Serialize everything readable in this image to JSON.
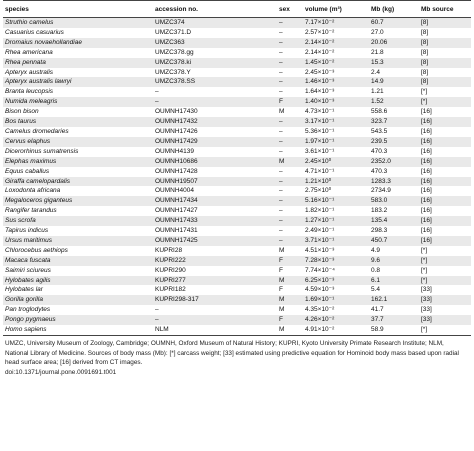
{
  "headers": {
    "species": "species",
    "accession": "accession no.",
    "sex": "sex",
    "volume": "volume (m³)",
    "mb": "Mb (kg)",
    "mb_source": "Mb source"
  },
  "rows": [
    {
      "species": "Struthio camelus",
      "accession": "UMZC374",
      "sex": "–",
      "volume": "7.17×10⁻²",
      "mb": "60.7",
      "source": "[8]"
    },
    {
      "species": "Casuarius casuarius",
      "accession": "UMZC371.D",
      "sex": "–",
      "volume": "2.57×10⁻²",
      "mb": "27.0",
      "source": "[8]"
    },
    {
      "species": "Dromaius novaehollandiae",
      "accession": "UMZC363",
      "sex": "–",
      "volume": "2.14×10⁻²",
      "mb": "20.06",
      "source": "[8]"
    },
    {
      "species": "Rhea americana",
      "accession": "UMZC378.gg",
      "sex": "–",
      "volume": "2.14×10⁻²",
      "mb": "21.8",
      "source": "[8]"
    },
    {
      "species": "Rhea pennata",
      "accession": "UMZC378.ki",
      "sex": "–",
      "volume": "1.45×10⁻²",
      "mb": "15.3",
      "source": "[8]"
    },
    {
      "species": "Apteryx australis",
      "accession": "UMZC378.Y",
      "sex": "–",
      "volume": "2.45×10⁻³",
      "mb": "2.4",
      "source": "[8]"
    },
    {
      "species": "Apteryx australis lawryi",
      "accession": "UMZC378.SS",
      "sex": "–",
      "volume": "1.46×10⁻³",
      "mb": "14.9",
      "source": "[8]"
    },
    {
      "species": "Branta leucopsis",
      "accession": "–",
      "sex": "–",
      "volume": "1.64×10⁻³",
      "mb": "1.21",
      "source": "[*]"
    },
    {
      "species": "Numida meleagris",
      "accession": "–",
      "sex": "F",
      "volume": "1.40×10⁻³",
      "mb": "1.52",
      "source": "[*]"
    },
    {
      "species": "Bison bison",
      "accession": "OUMNH17430",
      "sex": "M",
      "volume": "4.73×10⁻¹",
      "mb": "558.6",
      "source": "[16]"
    },
    {
      "species": "Bos taurus",
      "accession": "OUMNH17432",
      "sex": "–",
      "volume": "3.17×10⁻¹",
      "mb": "323.7",
      "source": "[16]"
    },
    {
      "species": "Camelus dromedaries",
      "accession": "OUMNH17426",
      "sex": "–",
      "volume": "5.36×10⁻¹",
      "mb": "543.5",
      "source": "[16]"
    },
    {
      "species": "Cervus elaphus",
      "accession": "OUMNH17429",
      "sex": "–",
      "volume": "1.97×10⁻¹",
      "mb": "239.5",
      "source": "[16]"
    },
    {
      "species": "Dicerorhinus sumatrensis",
      "accession": "OUMNH4139",
      "sex": "–",
      "volume": "3.61×10⁻¹",
      "mb": "470.3",
      "source": "[16]"
    },
    {
      "species": "Elephas maximus",
      "accession": "OUMNH10686",
      "sex": "M",
      "volume": "2.45×10⁰",
      "mb": "2352.0",
      "source": "[16]"
    },
    {
      "species": "Equus caballus",
      "accession": "OUMNH17428",
      "sex": "–",
      "volume": "4.71×10⁻¹",
      "mb": "470.3",
      "source": "[16]"
    },
    {
      "species": "Giraffa camelopardalis",
      "accession": "OUMNH19507",
      "sex": "–",
      "volume": "1.21×10⁰",
      "mb": "1283.3",
      "source": "[16]"
    },
    {
      "species": "Loxodonta africana",
      "accession": "OUMNH4004",
      "sex": "–",
      "volume": "2.75×10⁰",
      "mb": "2734.9",
      "source": "[16]"
    },
    {
      "species": "Megaloceros giganteus",
      "accession": "OUMNH17434",
      "sex": "–",
      "volume": "5.16×10⁻¹",
      "mb": "583.0",
      "source": "[16]"
    },
    {
      "species": "Rangifer tarandus",
      "accession": "OUMNH17427",
      "sex": "–",
      "volume": "1.82×10⁻¹",
      "mb": "183.2",
      "source": "[16]"
    },
    {
      "species": "Sus scrofa",
      "accession": "OUMNH17433",
      "sex": "–",
      "volume": "1.27×10⁻¹",
      "mb": "135.4",
      "source": "[16]"
    },
    {
      "species": "Tapirus indicus",
      "accession": "OUMNH17431",
      "sex": "–",
      "volume": "2.49×10⁻¹",
      "mb": "298.3",
      "source": "[16]"
    },
    {
      "species": "Ursus maritimus",
      "accession": "OUMNH17425",
      "sex": "–",
      "volume": "3.71×10⁻¹",
      "mb": "450.7",
      "source": "[16]"
    },
    {
      "species": "Chlorocebus aethiops",
      "accession": "KUPRI28",
      "sex": "M",
      "volume": "4.51×10⁻³",
      "mb": "4.9",
      "source": "[*]"
    },
    {
      "species": "Macaca fuscata",
      "accession": "KUPRI222",
      "sex": "F",
      "volume": "7.28×10⁻³",
      "mb": "9.6",
      "source": "[*]"
    },
    {
      "species": "Saimiri sciureus",
      "accession": "KUPRI290",
      "sex": "F",
      "volume": "7.74×10⁻⁴",
      "mb": "0.8",
      "source": "[*]"
    },
    {
      "species": "Hylobates agilis",
      "accession": "KUPRI277",
      "sex": "M",
      "volume": "6.25×10⁻³",
      "mb": "6.1",
      "source": "[*]"
    },
    {
      "species": "Hylobates lar",
      "accession": "KUPRI182",
      "sex": "F",
      "volume": "4.59×10⁻³",
      "mb": "5.4",
      "source": "[33]"
    },
    {
      "species": "Gorilla gorilla",
      "accession": "KUPRI298-317",
      "sex": "M",
      "volume": "1.69×10⁻¹",
      "mb": "162.1",
      "source": "[33]"
    },
    {
      "species": "Pan troglodytes",
      "accession": "–",
      "sex": "M",
      "volume": "4.35×10⁻²",
      "mb": "41.7",
      "source": "[33]"
    },
    {
      "species": "Pongo pygmaeus",
      "accession": "–",
      "sex": "F",
      "volume": "4.26×10⁻²",
      "mb": "37.7",
      "source": "[33]"
    },
    {
      "species": "Homo sapiens",
      "accession": "NLM",
      "sex": "M",
      "volume": "4.91×10⁻²",
      "mb": "58.9",
      "source": "[*]"
    }
  ],
  "footnote": "UMZC, University Museum of Zoology, Cambridge; OUMNH, Oxford Museum of Natural History; KUPRI, Kyoto University Primate Research Institute; NLM, National Library of Medicine. Sources of body mass (Mb): [*] carcass weight; [33] estimated using predictive equation for Hominoid body mass based upon radial head surface area; [16] derived from CT images.",
  "doi": "doi:10.1371/journal.pone.0091691.t001"
}
